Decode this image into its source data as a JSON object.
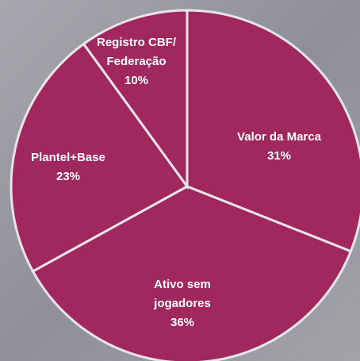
{
  "chart_data": {
    "type": "pie",
    "categories": [
      "Valor da Marca",
      "Ativo sem jogadores",
      "Plantel+Base",
      "Registro CBF/ Federação"
    ],
    "values": [
      31,
      36,
      23,
      10
    ],
    "value_labels": [
      "31%",
      "36%",
      "23%",
      "10%"
    ],
    "color": "#a1275f"
  }
}
